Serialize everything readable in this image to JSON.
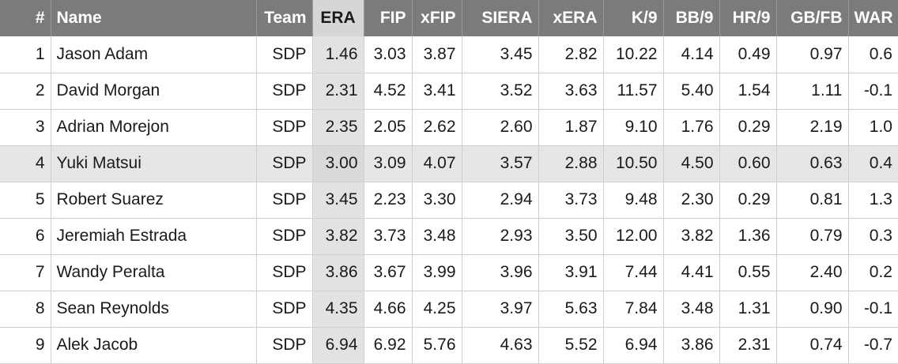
{
  "table": {
    "columns": [
      "#",
      "Name",
      "Team",
      "ERA",
      "FIP",
      "xFIP",
      "SIERA",
      "xERA",
      "K/9",
      "BB/9",
      "HR/9",
      "GB/FB",
      "WAR"
    ],
    "rows": [
      [
        "1",
        "Jason Adam",
        "SDP",
        "1.46",
        "3.03",
        "3.87",
        "3.45",
        "2.82",
        "10.22",
        "4.14",
        "0.49",
        "0.97",
        "0.6"
      ],
      [
        "2",
        "David Morgan",
        "SDP",
        "2.31",
        "4.52",
        "3.41",
        "3.52",
        "3.63",
        "11.57",
        "5.40",
        "1.54",
        "1.11",
        "-0.1"
      ],
      [
        "3",
        "Adrian Morejon",
        "SDP",
        "2.35",
        "2.05",
        "2.62",
        "2.60",
        "1.87",
        "9.10",
        "1.76",
        "0.29",
        "2.19",
        "1.0"
      ],
      [
        "4",
        "Yuki Matsui",
        "SDP",
        "3.00",
        "3.09",
        "4.07",
        "3.57",
        "2.88",
        "10.50",
        "4.50",
        "0.60",
        "0.63",
        "0.4"
      ],
      [
        "5",
        "Robert Suarez",
        "SDP",
        "3.45",
        "2.23",
        "3.30",
        "2.94",
        "3.73",
        "9.48",
        "2.30",
        "0.29",
        "0.81",
        "1.3"
      ],
      [
        "6",
        "Jeremiah Estrada",
        "SDP",
        "3.82",
        "3.73",
        "3.48",
        "2.93",
        "3.50",
        "12.00",
        "3.82",
        "1.36",
        "0.79",
        "0.3"
      ],
      [
        "7",
        "Wandy Peralta",
        "SDP",
        "3.86",
        "3.67",
        "3.99",
        "3.96",
        "3.91",
        "7.44",
        "4.41",
        "0.55",
        "2.40",
        "0.2"
      ],
      [
        "8",
        "Sean Reynolds",
        "SDP",
        "4.35",
        "4.66",
        "4.25",
        "3.97",
        "5.63",
        "7.84",
        "3.48",
        "1.31",
        "0.90",
        "-0.1"
      ],
      [
        "9",
        "Alek Jacob",
        "SDP",
        "6.94",
        "6.92",
        "5.76",
        "4.63",
        "5.52",
        "6.94",
        "3.86",
        "2.31",
        "0.74",
        "-0.7"
      ]
    ],
    "sorted_column": "ERA",
    "highlighted_row": "4"
  },
  "colors": {
    "header_bg": "#7b7b7b",
    "header_text": "#ffffff",
    "sorted_column_bg": "#e2e2e2",
    "highlight_row_bg": "#e6e6e6",
    "grid_line": "#cfcfcf"
  }
}
